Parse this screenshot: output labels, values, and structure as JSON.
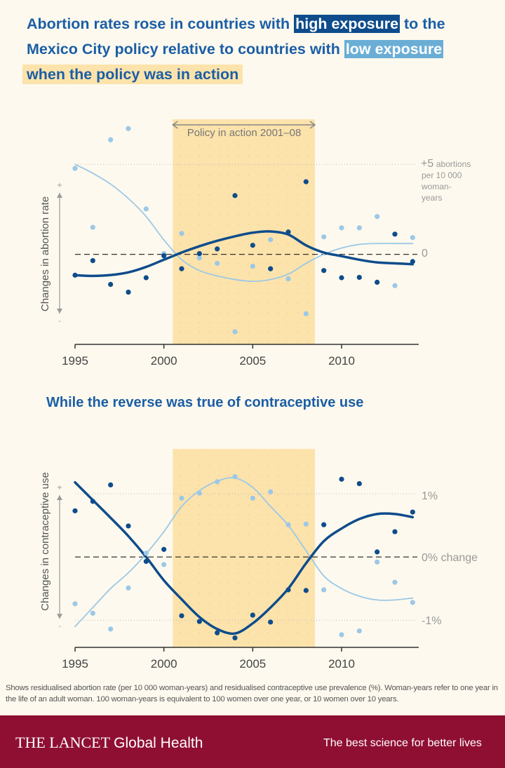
{
  "title": {
    "part1": "Abortion rates rose in countries with ",
    "high": "high exposure",
    "part2": " to the Mexico City policy relative to countries with ",
    "low": "low exposure",
    "part3": "when the policy was in action"
  },
  "subtitle": "While the reverse was true of contraceptive use",
  "note": "Shows residualised abortion rate (per 10 000 woman-years) and residualised contraceptive use prevalence (%). Woman-years refer to one year in the life of an adult woman. 100 woman-years is equivalent to 100 women over one year, or 10 women over 10 years.",
  "footer": {
    "brand": "THE LANCET",
    "brand_sub": "Global Health",
    "tagline": "The best science for better lives"
  },
  "colors": {
    "high": "#0e4c8c",
    "low": "#9cc8e6",
    "policy_band": "#fce3ab",
    "footer": "#8f0f33"
  },
  "chart_data": [
    {
      "type": "scatter",
      "title": "Abortion rate",
      "ylabel": "Changes in abortion rate",
      "plus_label": "+",
      "minus_label": "-",
      "x": [
        1995,
        1996,
        1997,
        1998,
        1999,
        2000,
        2001,
        2002,
        2003,
        2004,
        2005,
        2006,
        2007,
        2008,
        2009,
        2010,
        2011,
        2012,
        2013,
        2014
      ],
      "xticks": [
        "1995",
        "2000",
        "2005",
        "2010"
      ],
      "ylim": [
        -5,
        7.5
      ],
      "ref_labels": {
        "top_line1": "+5",
        "top_line1b": "abortions",
        "top_line2": "per 10 000",
        "top_line3": "woman-",
        "top_line4": "years",
        "zero": "0"
      },
      "policy": {
        "label": "Policy in action 2001–08",
        "start": 2000.5,
        "end": 2008.5
      },
      "series": [
        {
          "name": "High exposure",
          "points": [
            -1.16,
            -0.35,
            -1.67,
            -2.1,
            -1.3,
            -0.08,
            -0.8,
            0.04,
            0.3,
            3.26,
            0.5,
            -0.8,
            1.24,
            4.03,
            -0.9,
            -1.3,
            -1.28,
            -1.55,
            1.12,
            -0.4
          ],
          "trend": [
            -1.16,
            -1.2,
            -1.15,
            -1.0,
            -0.7,
            -0.3,
            0.1,
            0.45,
            0.75,
            1.0,
            1.2,
            1.27,
            1.1,
            0.5,
            0.1,
            -0.1,
            -0.3,
            -0.45,
            -0.5,
            -0.55
          ]
        },
        {
          "name": "Low exposure",
          "points": [
            4.77,
            1.5,
            6.36,
            6.98,
            2.52,
            0.04,
            1.16,
            -0.2,
            -0.5,
            -4.3,
            -0.66,
            0.81,
            -1.36,
            -3.3,
            0.97,
            1.47,
            1.47,
            2.1,
            -1.74,
            0.93
          ],
          "trend": [
            5.0,
            4.5,
            3.9,
            3.1,
            2.1,
            0.8,
            -0.3,
            -0.9,
            -1.2,
            -1.4,
            -1.5,
            -1.4,
            -1.1,
            -0.5,
            0.0,
            0.35,
            0.55,
            0.6,
            0.6,
            0.6
          ]
        }
      ]
    },
    {
      "type": "scatter",
      "title": "Contraceptive use",
      "ylabel": "Changes in contraceptive use",
      "plus_label": "+",
      "minus_label": "-",
      "x": [
        1995,
        1996,
        1997,
        1998,
        1999,
        2000,
        2001,
        2002,
        2003,
        2004,
        2005,
        2006,
        2007,
        2008,
        2009,
        2010,
        2011,
        2012,
        2013,
        2014
      ],
      "xticks": [
        "1995",
        "2000",
        "2005",
        "2010"
      ],
      "ylim": [
        -1.43,
        1.71
      ],
      "ref_labels": {
        "top": "1%",
        "zero": "0% change",
        "bottom": "-1%"
      },
      "policy": {
        "start": 2000.5,
        "end": 2008.5
      },
      "series": [
        {
          "name": "High exposure",
          "points": [
            0.73,
            0.88,
            1.14,
            0.49,
            -0.07,
            0.12,
            -0.93,
            -1.02,
            -1.2,
            -1.28,
            -0.92,
            -1.03,
            -0.52,
            -0.53,
            0.51,
            1.23,
            1.16,
            0.08,
            0.4,
            0.71
          ],
          "trend": [
            1.18,
            0.9,
            0.62,
            0.33,
            0.0,
            -0.37,
            -0.67,
            -0.95,
            -1.14,
            -1.21,
            -1.05,
            -0.8,
            -0.5,
            -0.1,
            0.25,
            0.45,
            0.6,
            0.68,
            0.68,
            0.63
          ]
        },
        {
          "name": "Low exposure",
          "points": [
            -0.74,
            -0.89,
            -1.14,
            -0.49,
            0.06,
            -0.12,
            0.93,
            1.01,
            1.19,
            1.27,
            0.93,
            1.03,
            0.51,
            0.52,
            -0.52,
            -1.23,
            -1.17,
            -0.08,
            -0.4,
            -0.72
          ],
          "trend": [
            -1.1,
            -0.8,
            -0.5,
            -0.25,
            0.05,
            0.4,
            0.8,
            1.05,
            1.2,
            1.25,
            1.1,
            0.8,
            0.5,
            0.1,
            -0.3,
            -0.5,
            -0.62,
            -0.68,
            -0.68,
            -0.65
          ]
        }
      ]
    }
  ]
}
